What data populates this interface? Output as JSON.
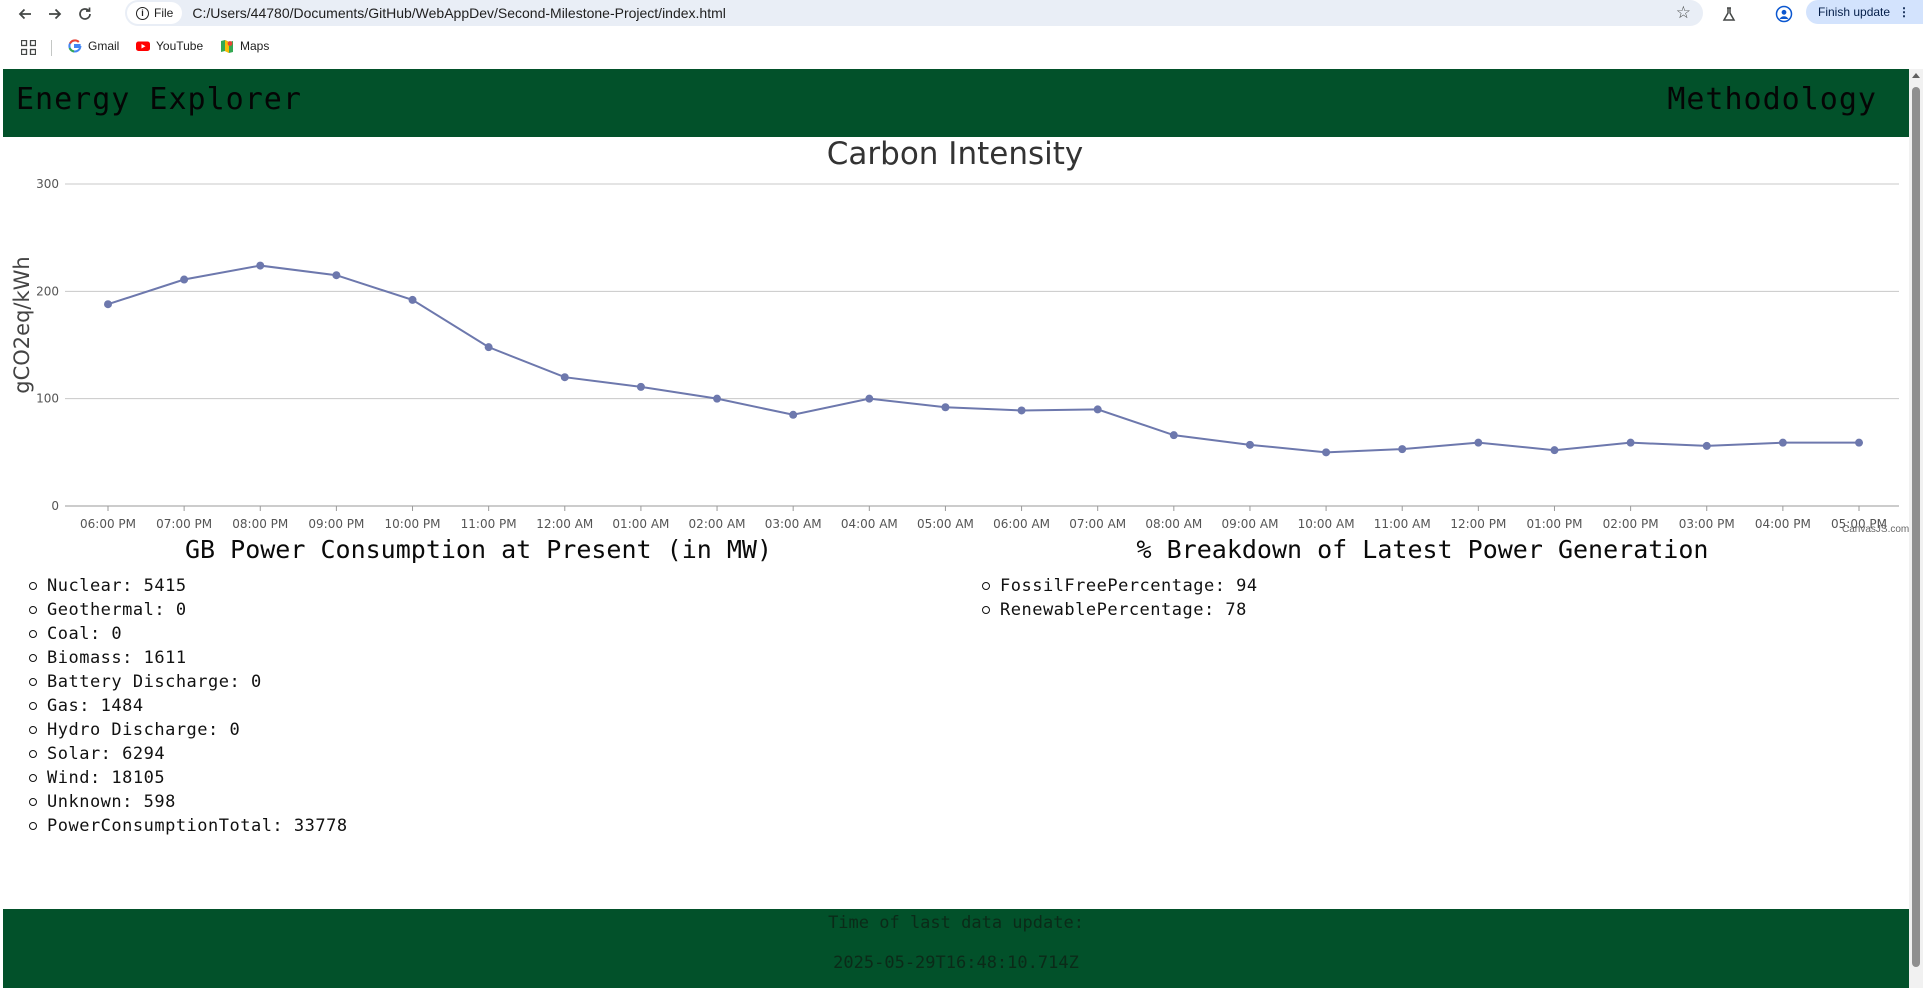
{
  "browser": {
    "chip_label": "File",
    "url": "C:/Users/44780/Documents/GitHub/WebAppDev/Second-Milestone-Project/index.html",
    "update_label": "Finish update",
    "bookmarks": [
      {
        "label": "Gmail",
        "icon": "gmail-icon"
      },
      {
        "label": "YouTube",
        "icon": "youtube-icon"
      },
      {
        "label": "Maps",
        "icon": "maps-icon"
      }
    ]
  },
  "header": {
    "brand": "Energy Explorer",
    "nav_link": "Methodology"
  },
  "chart_data": {
    "type": "line",
    "title": "Carbon Intensity",
    "ylabel": "gCO2eq/kWh",
    "xlabel": "",
    "ylim": [
      0,
      300
    ],
    "yticks": [
      0,
      100,
      200,
      300
    ],
    "grid": true,
    "line_color": "#6d78ad",
    "credit": "CanvasJS.com",
    "categories": [
      "06:00 PM",
      "07:00 PM",
      "08:00 PM",
      "09:00 PM",
      "10:00 PM",
      "11:00 PM",
      "12:00 AM",
      "01:00 AM",
      "02:00 AM",
      "03:00 AM",
      "04:00 AM",
      "05:00 AM",
      "06:00 AM",
      "07:00 AM",
      "08:00 AM",
      "09:00 AM",
      "10:00 AM",
      "11:00 AM",
      "12:00 PM",
      "01:00 PM",
      "02:00 PM",
      "03:00 PM",
      "04:00 PM",
      "05:00 PM"
    ],
    "values": [
      188,
      211,
      224,
      215,
      192,
      148,
      120,
      111,
      100,
      85,
      100,
      92,
      89,
      90,
      66,
      57,
      50,
      53,
      59,
      52,
      59,
      56,
      59,
      59
    ]
  },
  "consumption": {
    "heading": "GB Power Consumption at Present (in MW)",
    "items": [
      "Nuclear: 5415",
      "Geothermal: 0",
      "Coal: 0",
      "Biomass: 1611",
      "Battery Discharge: 0",
      "Gas: 1484",
      "Hydro Discharge: 0",
      "Solar: 6294",
      "Wind: 18105",
      "Unknown: 598",
      "PowerConsumptionTotal: 33778"
    ]
  },
  "breakdown": {
    "heading": "% Breakdown of Latest Power Generation",
    "items": [
      "FossilFreePercentage: 94",
      "RenewablePercentage: 78"
    ]
  },
  "footer": {
    "label": "Time of last data update:",
    "timestamp": "2025-05-29T16:48:10.714Z"
  },
  "colors": {
    "brand_green": "#02512a",
    "chart_line": "#6d78ad"
  }
}
